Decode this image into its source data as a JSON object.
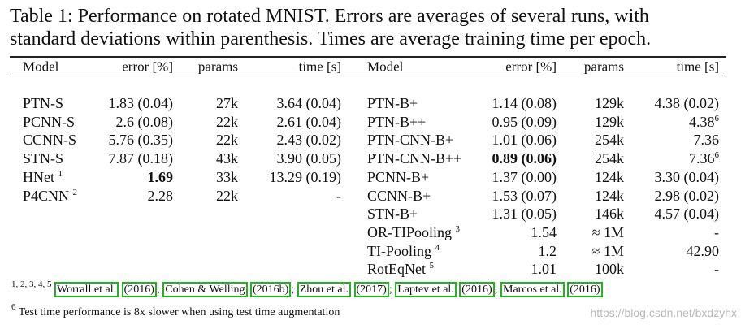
{
  "caption": {
    "lines": [
      "Table 1: Performance on rotated MNIST. Errors are averages of several runs, with",
      "standard deviations within parenthesis. Times are average training time per epoch."
    ]
  },
  "table": {
    "panels": [
      {
        "header": [
          "Model",
          "error [%]",
          "params",
          "time [s]"
        ],
        "rows": [
          {
            "model": "PTN-S",
            "error": "1.83 (0.04)",
            "params": "27k",
            "time": "3.64 (0.04)"
          },
          {
            "model": "PCNN-S",
            "error": "2.6 (0.08)",
            "params": "22k",
            "time": "2.61 (0.04)"
          },
          {
            "model": "CCNN-S",
            "error": "5.76 (0.35)",
            "params": "22k",
            "time": "2.43 (0.02)"
          },
          {
            "model": "STN-S",
            "error": "7.87 (0.18)",
            "params": "43k",
            "time": "3.90 (0.05)"
          },
          {
            "model": "HNet",
            "model_note": "1",
            "error": "1.69",
            "error_bold": true,
            "params": "33k",
            "time": "13.29 (0.19)"
          },
          {
            "model": "P4CNN",
            "model_note": "2",
            "error": "2.28",
            "params": "22k",
            "time": "-"
          }
        ]
      },
      {
        "header": [
          "Model",
          "error [%]",
          "params",
          "time [s]"
        ],
        "rows": [
          {
            "model": "PTN-B+",
            "error": "1.14 (0.08)",
            "params": "129k",
            "time": "4.38 (0.02)"
          },
          {
            "model": "PTN-B++",
            "error": "0.95 (0.09)",
            "params": "129k",
            "time": "4.38",
            "time_note": "6"
          },
          {
            "model": "PTN-CNN-B+",
            "error": "1.01 (0.06)",
            "params": "254k",
            "time": "7.36"
          },
          {
            "model": "PTN-CNN-B++",
            "error": "0.89 (0.06)",
            "error_bold": true,
            "params": "254k",
            "time": "7.36",
            "time_note": "6"
          },
          {
            "model": "PCNN-B+",
            "error": "1.37 (0.00)",
            "params": "124k",
            "time": "3.30 (0.04)"
          },
          {
            "model": "CCNN-B+",
            "error": "1.53 (0.07)",
            "params": "124k",
            "time": "2.98 (0.02)"
          },
          {
            "model": "STN-B+",
            "error": "1.31 (0.05)",
            "params": "146k",
            "time": "4.57 (0.04)"
          },
          {
            "model": "OR-TIPooling",
            "model_note": "3",
            "error": "1.54",
            "params": "≈ 1M",
            "time": "-"
          },
          {
            "model": "TI-Pooling",
            "model_note": "4",
            "error": "1.2",
            "params": "≈ 1M",
            "time": "42.90"
          },
          {
            "model": "RotEqNet",
            "model_note": "5",
            "error": "1.01",
            "params": "100k",
            "time": "-"
          }
        ]
      }
    ]
  },
  "footnotes": [
    {
      "marker": "1, 2, 3, 4, 5",
      "separator": ";",
      "citations": [
        {
          "author": "Worrall et al.",
          "year": "(2016)"
        },
        {
          "author": "Cohen & Welling",
          "year": "(2016b)"
        },
        {
          "author": "Zhou et al.",
          "year": "(2017)"
        },
        {
          "author": "Laptev et al.",
          "year": "(2016)"
        },
        {
          "author": "Marcos et al.",
          "year": "(2016)"
        }
      ]
    },
    {
      "marker": "6",
      "text": "Test time performance is 8x slower when using test time augmentation"
    }
  ],
  "watermark": "https://blog.csdn.net/bxdzyhx"
}
